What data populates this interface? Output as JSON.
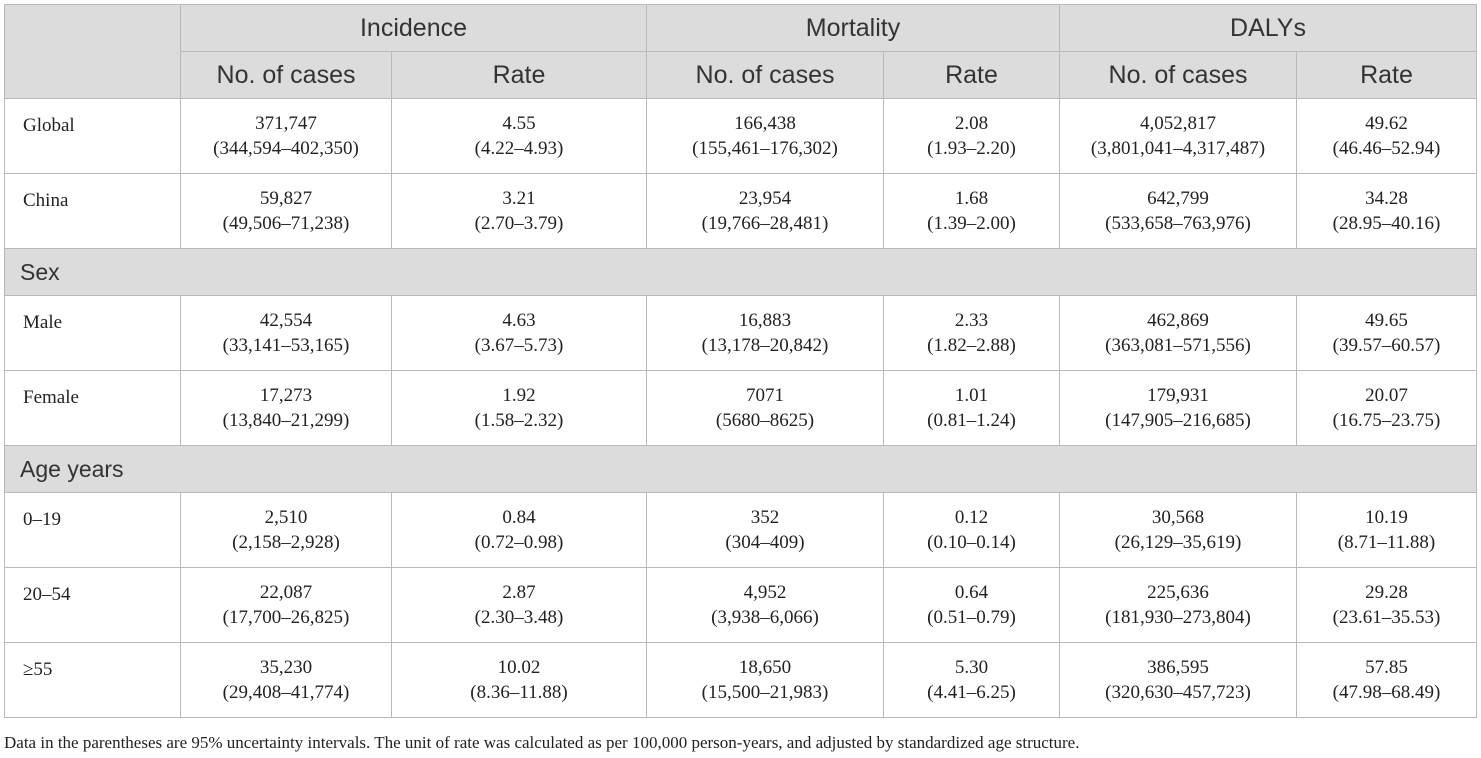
{
  "header": {
    "groups": [
      "Incidence",
      "Mortality",
      "DALYs"
    ],
    "subheaders": [
      "No. of cases",
      "Rate",
      "No. of cases",
      "Rate",
      "No. of cases",
      "Rate"
    ]
  },
  "rows": {
    "global": {
      "label": "Global",
      "cells": [
        {
          "value": "371,747",
          "ci": "(344,594–402,350)"
        },
        {
          "value": "4.55",
          "ci": "(4.22–4.93)"
        },
        {
          "value": "166,438",
          "ci": "(155,461–176,302)"
        },
        {
          "value": "2.08",
          "ci": "(1.93–2.20)"
        },
        {
          "value": "4,052,817",
          "ci": "(3,801,041–4,317,487)"
        },
        {
          "value": "49.62",
          "ci": "(46.46–52.94)"
        }
      ]
    },
    "china": {
      "label": "China",
      "cells": [
        {
          "value": "59,827",
          "ci": "(49,506–71,238)"
        },
        {
          "value": "3.21",
          "ci": "(2.70–3.79)"
        },
        {
          "value": "23,954",
          "ci": "(19,766–28,481)"
        },
        {
          "value": "1.68",
          "ci": "(1.39–2.00)"
        },
        {
          "value": "642,799",
          "ci": "(533,658–763,976)"
        },
        {
          "value": "34.28",
          "ci": "(28.95–40.16)"
        }
      ]
    },
    "male": {
      "label": "Male",
      "cells": [
        {
          "value": "42,554",
          "ci": "(33,141–53,165)"
        },
        {
          "value": "4.63",
          "ci": "(3.67–5.73)"
        },
        {
          "value": "16,883",
          "ci": "(13,178–20,842)"
        },
        {
          "value": "2.33",
          "ci": "(1.82–2.88)"
        },
        {
          "value": "462,869",
          "ci": "(363,081–571,556)"
        },
        {
          "value": "49.65",
          "ci": "(39.57–60.57)"
        }
      ]
    },
    "female": {
      "label": "Female",
      "cells": [
        {
          "value": "17,273",
          "ci": "(13,840–21,299)"
        },
        {
          "value": "1.92",
          "ci": "(1.58–2.32)"
        },
        {
          "value": "7071",
          "ci": "(5680–8625)"
        },
        {
          "value": "1.01",
          "ci": "(0.81–1.24)"
        },
        {
          "value": "179,931",
          "ci": "(147,905–216,685)"
        },
        {
          "value": "20.07",
          "ci": "(16.75–23.75)"
        }
      ]
    },
    "age_0_19": {
      "label": "0–19",
      "cells": [
        {
          "value": "2,510",
          "ci": "(2,158–2,928)"
        },
        {
          "value": "0.84",
          "ci": "(0.72–0.98)"
        },
        {
          "value": "352",
          "ci": "(304–409)"
        },
        {
          "value": "0.12",
          "ci": "(0.10–0.14)"
        },
        {
          "value": "30,568",
          "ci": "(26,129–35,619)"
        },
        {
          "value": "10.19",
          "ci": "(8.71–11.88)"
        }
      ]
    },
    "age_20_54": {
      "label": "20–54",
      "cells": [
        {
          "value": "22,087",
          "ci": "(17,700–26,825)"
        },
        {
          "value": "2.87",
          "ci": "(2.30–3.48)"
        },
        {
          "value": "4,952",
          "ci": "(3,938–6,066)"
        },
        {
          "value": "0.64",
          "ci": "(0.51–0.79)"
        },
        {
          "value": "225,636",
          "ci": "(181,930–273,804)"
        },
        {
          "value": "29.28",
          "ci": "(23.61–35.53)"
        }
      ]
    },
    "age_55_plus": {
      "label": "≥55",
      "cells": [
        {
          "value": "35,230",
          "ci": "(29,408–41,774)"
        },
        {
          "value": "10.02",
          "ci": "(8.36–11.88)"
        },
        {
          "value": "18,650",
          "ci": "(15,500–21,983)"
        },
        {
          "value": "5.30",
          "ci": "(4.41–6.25)"
        },
        {
          "value": "386,595",
          "ci": "(320,630–457,723)"
        },
        {
          "value": "57.85",
          "ci": "(47.98–68.49)"
        }
      ]
    }
  },
  "groups": {
    "sex": "Sex",
    "age": "Age years"
  },
  "footnote": "Data in the parentheses are 95% uncertainty intervals. The unit of rate was calculated as per 100,000 person-years, and adjusted by standardized age structure."
}
